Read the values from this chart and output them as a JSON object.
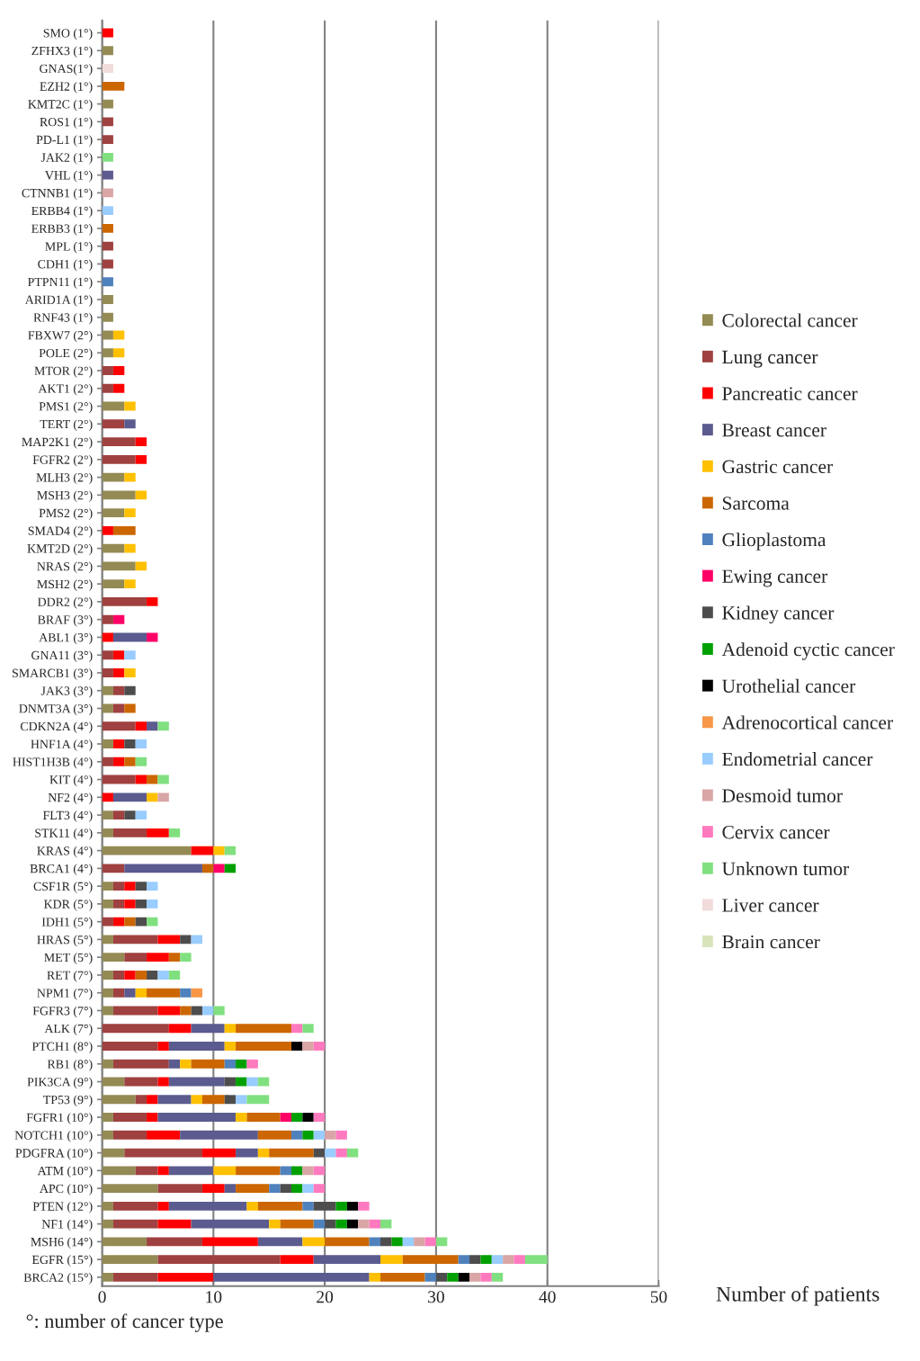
{
  "chart_data": {
    "type": "bar",
    "orientation": "horizontal",
    "stacked": true,
    "xlabel": "Number of patients",
    "annotations": [
      "°: number of cancer type"
    ],
    "xlim": [
      0,
      50
    ],
    "xticks": [
      0,
      10,
      20,
      30,
      40,
      50
    ],
    "grid": "x",
    "legend": "right",
    "categories": [
      "SMO (1°)",
      "ZFHX3 (1°)",
      "GNAS(1°)",
      "EZH2 (1°)",
      "KMT2C (1°)",
      "ROS1 (1°)",
      "PD-L1 (1°)",
      "JAK2 (1°)",
      "VHL (1°)",
      "CTNNB1 (1°)",
      "ERBB4 (1°)",
      "ERBB3 (1°)",
      "MPL (1°)",
      "CDH1 (1°)",
      "PTPN11 (1°)",
      "ARID1A (1°)",
      "RNF43 (1°)",
      "FBXW7 (2°)",
      "POLE (2°)",
      "MTOR (2°)",
      "AKT1 (2°)",
      "PMS1 (2°)",
      "TERT (2°)",
      "MAP2K1 (2°)",
      "FGFR2 (2°)",
      "MLH3 (2°)",
      "MSH3 (2°)",
      "PMS2 (2°)",
      "SMAD4 (2°)",
      "KMT2D (2°)",
      "NRAS (2°)",
      "MSH2 (2°)",
      "DDR2 (2°)",
      "BRAF (3°)",
      "ABL1 (3°)",
      "GNA11 (3°)",
      "SMARCB1 (3°)",
      "JAK3 (3°)",
      "DNMT3A (3°)",
      "CDKN2A (4°)",
      "HNF1A (4°)",
      "HIST1H3B (4°)",
      "KIT (4°)",
      "NF2 (4°)",
      "FLT3 (4°)",
      "STK11 (4°)",
      "KRAS (4°)",
      "BRCA1 (4°)",
      "CSF1R (5°)",
      "KDR (5°)",
      "IDH1 (5°)",
      "HRAS (5°)",
      "MET (5°)",
      "RET (7°)",
      "NPM1 (7°)",
      "FGFR3 (7°)",
      "ALK (7°)",
      "PTCH1 (8°)",
      "RB1 (8°)",
      "PIK3CA (9°)",
      "TP53 (9°)",
      "FGFR1 (10°)",
      "NOTCH1 (10°)",
      "PDGFRA (10°)",
      "ATM (10°)",
      "APC (10°)",
      "PTEN (12°)",
      "NF1 (14°)",
      "MSH6 (14°)",
      "EGFR (15°)",
      "BRCA2 (15°)"
    ],
    "series": [
      {
        "name": "Colorectal cancer",
        "color": "#948a54",
        "values": [
          0,
          1,
          0,
          0,
          1,
          0,
          0,
          0,
          0,
          0,
          0,
          0,
          0,
          0,
          0,
          1,
          1,
          1,
          1,
          0,
          0,
          2,
          0,
          0,
          0,
          2,
          3,
          2,
          0,
          2,
          3,
          2,
          0,
          0,
          0,
          0,
          0,
          1,
          1,
          0,
          1,
          0,
          0,
          0,
          1,
          1,
          8,
          0,
          1,
          1,
          0,
          1,
          2,
          1,
          1,
          1,
          0,
          0,
          1,
          2,
          3,
          1,
          1,
          2,
          3,
          5,
          1,
          1,
          4,
          5,
          1
        ]
      },
      {
        "name": "Lung cancer",
        "color": "#9e4140",
        "values": [
          0,
          0,
          0,
          0,
          0,
          1,
          1,
          0,
          0,
          0,
          0,
          0,
          1,
          1,
          0,
          0,
          0,
          0,
          0,
          1,
          1,
          0,
          2,
          3,
          3,
          0,
          0,
          0,
          0,
          0,
          0,
          0,
          4,
          1,
          0,
          1,
          1,
          1,
          1,
          3,
          0,
          1,
          3,
          0,
          1,
          3,
          0,
          2,
          1,
          1,
          1,
          4,
          2,
          1,
          1,
          4,
          6,
          5,
          5,
          3,
          1,
          3,
          3,
          7,
          2,
          4,
          4,
          4,
          5,
          11,
          4
        ]
      },
      {
        "name": "Pancreatic cancer",
        "color": "#ff0000",
        "values": [
          1,
          0,
          0,
          0,
          0,
          0,
          0,
          0,
          0,
          0,
          0,
          0,
          0,
          0,
          0,
          0,
          0,
          0,
          0,
          1,
          1,
          0,
          0,
          1,
          1,
          0,
          0,
          0,
          1,
          0,
          0,
          0,
          1,
          0,
          1,
          1,
          1,
          0,
          0,
          1,
          1,
          1,
          1,
          1,
          0,
          2,
          2,
          0,
          1,
          1,
          1,
          2,
          2,
          1,
          0,
          2,
          2,
          1,
          0,
          1,
          1,
          1,
          3,
          3,
          1,
          2,
          1,
          3,
          5,
          3,
          5
        ]
      },
      {
        "name": "Breast cancer",
        "color": "#5b5b8f",
        "values": [
          0,
          0,
          0,
          0,
          0,
          0,
          0,
          0,
          1,
          0,
          0,
          0,
          0,
          0,
          0,
          0,
          0,
          0,
          0,
          0,
          0,
          0,
          1,
          0,
          0,
          0,
          0,
          0,
          0,
          0,
          0,
          0,
          0,
          0,
          3,
          0,
          0,
          0,
          0,
          1,
          0,
          0,
          0,
          3,
          0,
          0,
          0,
          7,
          0,
          0,
          0,
          0,
          0,
          0,
          1,
          0,
          3,
          5,
          1,
          5,
          3,
          7,
          7,
          2,
          4,
          1,
          7,
          7,
          4,
          6,
          14
        ]
      },
      {
        "name": "Gastric cancer",
        "color": "#ffc000",
        "values": [
          0,
          0,
          0,
          0,
          0,
          0,
          0,
          0,
          0,
          0,
          0,
          0,
          0,
          0,
          0,
          0,
          0,
          1,
          1,
          0,
          0,
          1,
          0,
          0,
          0,
          1,
          1,
          1,
          0,
          1,
          1,
          1,
          0,
          0,
          0,
          0,
          1,
          0,
          0,
          0,
          0,
          0,
          0,
          1,
          0,
          0,
          1,
          0,
          0,
          0,
          0,
          0,
          0,
          0,
          1,
          0,
          1,
          1,
          1,
          0,
          1,
          1,
          0,
          1,
          2,
          0,
          1,
          1,
          2,
          2,
          1
        ]
      },
      {
        "name": "Sarcoma",
        "color": "#cc6600",
        "values": [
          0,
          0,
          0,
          2,
          0,
          0,
          0,
          0,
          0,
          0,
          0,
          1,
          0,
          0,
          0,
          0,
          0,
          0,
          0,
          0,
          0,
          0,
          0,
          0,
          0,
          0,
          0,
          0,
          2,
          0,
          0,
          0,
          0,
          0,
          0,
          0,
          0,
          0,
          1,
          0,
          0,
          1,
          1,
          0,
          0,
          0,
          0,
          1,
          0,
          0,
          1,
          0,
          1,
          1,
          3,
          1,
          5,
          5,
          3,
          0,
          2,
          3,
          3,
          4,
          4,
          3,
          4,
          3,
          4,
          5,
          4
        ]
      },
      {
        "name": "Glioplastoma",
        "color": "#4f81bd",
        "values": [
          0,
          0,
          0,
          0,
          0,
          0,
          0,
          0,
          0,
          0,
          0,
          0,
          0,
          0,
          1,
          0,
          0,
          0,
          0,
          0,
          0,
          0,
          0,
          0,
          0,
          0,
          0,
          0,
          0,
          0,
          0,
          0,
          0,
          0,
          0,
          0,
          0,
          0,
          0,
          0,
          0,
          0,
          0,
          0,
          0,
          0,
          0,
          0,
          0,
          0,
          0,
          0,
          0,
          0,
          1,
          0,
          0,
          0,
          1,
          0,
          0,
          0,
          1,
          0,
          1,
          1,
          1,
          1,
          1,
          1,
          1
        ]
      },
      {
        "name": "Ewing cancer",
        "color": "#ff0066",
        "values": [
          0,
          0,
          0,
          0,
          0,
          0,
          0,
          0,
          0,
          0,
          0,
          0,
          0,
          0,
          0,
          0,
          0,
          0,
          0,
          0,
          0,
          0,
          0,
          0,
          0,
          0,
          0,
          0,
          0,
          0,
          0,
          0,
          0,
          1,
          1,
          0,
          0,
          0,
          0,
          0,
          0,
          0,
          0,
          0,
          0,
          0,
          0,
          1,
          0,
          0,
          0,
          0,
          0,
          0,
          0,
          0,
          0,
          0,
          0,
          0,
          0,
          1,
          0,
          0,
          0,
          0,
          0,
          0,
          0,
          0,
          0
        ]
      },
      {
        "name": "Kidney cancer",
        "color": "#4d4d4d",
        "values": [
          0,
          0,
          0,
          0,
          0,
          0,
          0,
          0,
          0,
          0,
          0,
          0,
          0,
          0,
          0,
          0,
          0,
          0,
          0,
          0,
          0,
          0,
          0,
          0,
          0,
          0,
          0,
          0,
          0,
          0,
          0,
          0,
          0,
          0,
          0,
          0,
          0,
          1,
          0,
          0,
          1,
          0,
          0,
          0,
          1,
          0,
          0,
          0,
          1,
          1,
          1,
          1,
          0,
          1,
          0,
          1,
          0,
          0,
          0,
          1,
          1,
          0,
          0,
          1,
          0,
          1,
          2,
          1,
          1,
          1,
          1
        ]
      },
      {
        "name": "Adenoid cyctic cancer",
        "color": "#00a000",
        "values": [
          0,
          0,
          0,
          0,
          0,
          0,
          0,
          0,
          0,
          0,
          0,
          0,
          0,
          0,
          0,
          0,
          0,
          0,
          0,
          0,
          0,
          0,
          0,
          0,
          0,
          0,
          0,
          0,
          0,
          0,
          0,
          0,
          0,
          0,
          0,
          0,
          0,
          0,
          0,
          0,
          0,
          0,
          0,
          0,
          0,
          0,
          0,
          1,
          0,
          0,
          0,
          0,
          0,
          0,
          0,
          0,
          0,
          0,
          1,
          1,
          0,
          1,
          1,
          0,
          1,
          1,
          1,
          1,
          1,
          1,
          1
        ]
      },
      {
        "name": "Urothelial cancer",
        "color": "#000000",
        "values": [
          0,
          0,
          0,
          0,
          0,
          0,
          0,
          0,
          0,
          0,
          0,
          0,
          0,
          0,
          0,
          0,
          0,
          0,
          0,
          0,
          0,
          0,
          0,
          0,
          0,
          0,
          0,
          0,
          0,
          0,
          0,
          0,
          0,
          0,
          0,
          0,
          0,
          0,
          0,
          0,
          0,
          0,
          0,
          0,
          0,
          0,
          0,
          0,
          0,
          0,
          0,
          0,
          0,
          0,
          0,
          0,
          0,
          1,
          0,
          0,
          0,
          1,
          0,
          0,
          0,
          0,
          1,
          1,
          0,
          0,
          1
        ]
      },
      {
        "name": "Adrenocortical cancer",
        "color": "#f79646",
        "values": [
          0,
          0,
          0,
          0,
          0,
          0,
          0,
          0,
          0,
          0,
          0,
          0,
          0,
          0,
          0,
          0,
          0,
          0,
          0,
          0,
          0,
          0,
          0,
          0,
          0,
          0,
          0,
          0,
          0,
          0,
          0,
          0,
          0,
          0,
          0,
          0,
          0,
          0,
          0,
          0,
          0,
          0,
          0,
          0,
          0,
          0,
          0,
          0,
          0,
          0,
          0,
          0,
          0,
          0,
          1,
          0,
          0,
          0,
          0,
          0,
          0,
          0,
          0,
          0,
          0,
          0,
          0,
          0,
          0,
          0,
          0
        ]
      },
      {
        "name": "Endometrial cancer",
        "color": "#99ccff",
        "values": [
          0,
          0,
          0,
          0,
          0,
          0,
          0,
          0,
          0,
          0,
          1,
          0,
          0,
          0,
          0,
          0,
          0,
          0,
          0,
          0,
          0,
          0,
          0,
          0,
          0,
          0,
          0,
          0,
          0,
          0,
          0,
          0,
          0,
          0,
          0,
          1,
          0,
          0,
          0,
          0,
          1,
          0,
          0,
          0,
          1,
          0,
          0,
          0,
          1,
          1,
          0,
          1,
          0,
          1,
          0,
          1,
          0,
          0,
          0,
          1,
          1,
          0,
          1,
          1,
          0,
          1,
          0,
          0,
          1,
          1,
          0
        ]
      },
      {
        "name": "Desmoid tumor",
        "color": "#d9a5a5",
        "values": [
          0,
          0,
          0,
          0,
          0,
          0,
          0,
          0,
          0,
          1,
          0,
          0,
          0,
          0,
          0,
          0,
          0,
          0,
          0,
          0,
          0,
          0,
          0,
          0,
          0,
          0,
          0,
          0,
          0,
          0,
          0,
          0,
          0,
          0,
          0,
          0,
          0,
          0,
          0,
          0,
          0,
          0,
          0,
          1,
          0,
          0,
          0,
          0,
          0,
          0,
          0,
          0,
          0,
          0,
          0,
          0,
          0,
          1,
          0,
          0,
          0,
          0,
          1,
          0,
          1,
          0,
          0,
          1,
          1,
          1,
          1
        ]
      },
      {
        "name": "Cervix cancer",
        "color": "#ff79bf",
        "values": [
          0,
          0,
          0,
          0,
          0,
          0,
          0,
          0,
          0,
          0,
          0,
          0,
          0,
          0,
          0,
          0,
          0,
          0,
          0,
          0,
          0,
          0,
          0,
          0,
          0,
          0,
          0,
          0,
          0,
          0,
          0,
          0,
          0,
          0,
          0,
          0,
          0,
          0,
          0,
          0,
          0,
          0,
          0,
          0,
          0,
          0,
          0,
          0,
          0,
          0,
          0,
          0,
          0,
          0,
          0,
          0,
          1,
          1,
          1,
          0,
          0,
          1,
          1,
          1,
          1,
          1,
          1,
          1,
          1,
          1,
          1
        ]
      },
      {
        "name": "Unknown tumor",
        "color": "#80e080",
        "values": [
          0,
          0,
          0,
          0,
          0,
          0,
          0,
          1,
          0,
          0,
          0,
          0,
          0,
          0,
          0,
          0,
          0,
          0,
          0,
          0,
          0,
          0,
          0,
          0,
          0,
          0,
          0,
          0,
          0,
          0,
          0,
          0,
          0,
          0,
          0,
          0,
          0,
          0,
          0,
          1,
          0,
          1,
          1,
          0,
          0,
          1,
          1,
          0,
          0,
          0,
          1,
          0,
          1,
          1,
          0,
          1,
          1,
          0,
          0,
          1,
          2,
          0,
          0,
          1,
          0,
          0,
          0,
          1,
          1,
          2,
          1
        ]
      },
      {
        "name": "Liver cancer",
        "color": "#f2dcdb",
        "values": [
          0,
          0,
          1,
          0,
          0,
          0,
          0,
          0,
          0,
          0,
          0,
          0,
          0,
          0,
          0,
          0,
          0,
          0,
          0,
          0,
          0,
          0,
          0,
          0,
          0,
          0,
          0,
          0,
          0,
          0,
          0,
          0,
          0,
          0,
          0,
          0,
          0,
          0,
          0,
          0,
          0,
          0,
          0,
          0,
          0,
          0,
          0,
          0,
          0,
          0,
          0,
          0,
          0,
          0,
          0,
          0,
          0,
          0,
          0,
          0,
          0,
          0,
          0,
          0,
          0,
          0,
          0,
          0,
          0,
          0,
          0
        ]
      },
      {
        "name": "Brain cancer",
        "color": "#d7e4bc",
        "values": [
          0,
          0,
          0,
          0,
          0,
          0,
          0,
          0,
          0,
          0,
          0,
          0,
          0,
          0,
          0,
          0,
          0,
          0,
          0,
          0,
          0,
          0,
          0,
          0,
          0,
          0,
          0,
          0,
          0,
          0,
          0,
          0,
          0,
          0,
          0,
          0,
          0,
          0,
          0,
          0,
          0,
          0,
          0,
          0,
          0,
          0,
          0,
          0,
          0,
          0,
          0,
          0,
          0,
          0,
          0,
          0,
          0,
          0,
          0,
          0,
          0,
          0,
          0,
          0,
          0,
          0,
          0,
          0,
          0,
          0,
          0
        ]
      }
    ]
  }
}
